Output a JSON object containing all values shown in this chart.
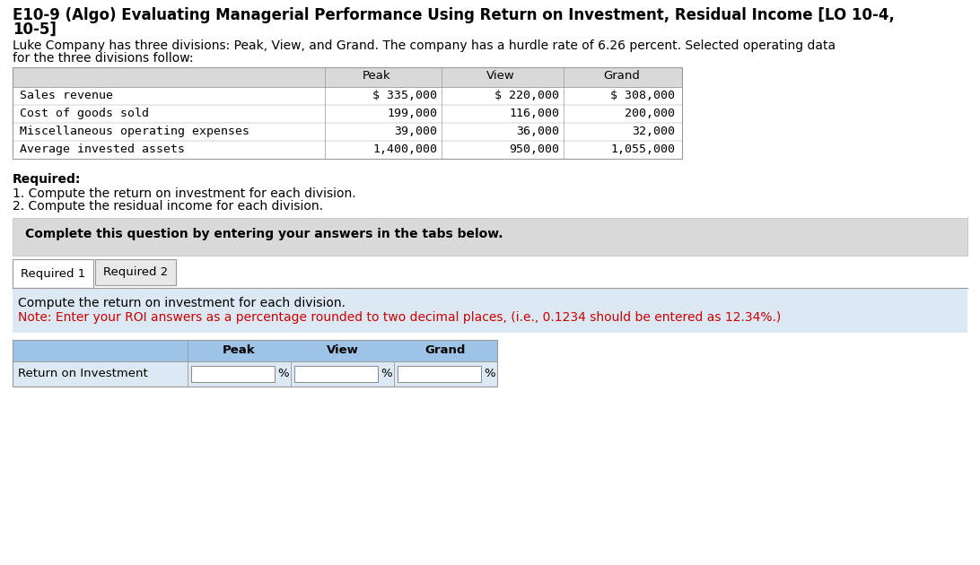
{
  "title_line1": "E10-9 (Algo) Evaluating Managerial Performance Using Return on Investment, Residual Income [LO 10-4,",
  "title_line2": "10-5]",
  "intro_line1": "Luke Company has three divisions: Peak, View, and Grand. The company has a hurdle rate of 6.26 percent. Selected operating data",
  "intro_line2": "for the three divisions follow:",
  "table_rows": [
    "Sales revenue",
    "Cost of goods sold",
    "Miscellaneous operating expenses",
    "Average invested assets"
  ],
  "columns": [
    "Peak",
    "View",
    "Grand"
  ],
  "table_data": [
    [
      "$ 335,000",
      "$ 220,000",
      "$ 308,000"
    ],
    [
      "199,000",
      "116,000",
      "200,000"
    ],
    [
      "39,000",
      "36,000",
      "32,000"
    ],
    [
      "1,400,000",
      "950,000",
      "1,055,000"
    ]
  ],
  "required_text": "Required:",
  "required_item1": "1. Compute the return on investment for each division.",
  "required_item2": "2. Compute the residual income for each division.",
  "complete_text": "Complete this question by entering your answers in the tabs below.",
  "tab1": "Required 1",
  "tab2": "Required 2",
  "instruction_line1": "Compute the return on investment for each division.",
  "instruction_line2": "Note: Enter your ROI answers as a percentage rounded to two decimal places, (i.e., 0.1234 should be entered as 12.34%.)",
  "roi_label": "Return on Investment",
  "roi_columns": [
    "Peak",
    "View",
    "Grand"
  ],
  "bg_color": "#ffffff",
  "table_header_bg": "#d9d9d9",
  "gray_box_bg": "#d9d9d9",
  "tab_active_bg": "#ffffff",
  "tab_inactive_bg": "#e8e8e8",
  "blue_section_bg": "#dce9f5",
  "roi_header_bg": "#9dc3e6",
  "roi_row_bg": "#dce9f5",
  "note_color": "#cc0000",
  "border_color": "#999999",
  "text_color": "#000000",
  "title_fontsize": 12,
  "body_fontsize": 10,
  "table_fontsize": 9.5,
  "small_fontsize": 9.5
}
